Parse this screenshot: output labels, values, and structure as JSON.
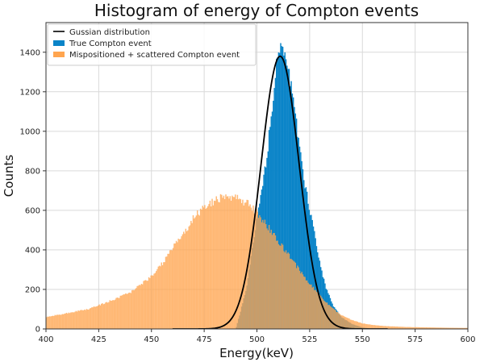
{
  "chart_data": {
    "type": "bar",
    "title": "Histogram of energy of Compton events",
    "xlabel": "Energy(keV)",
    "ylabel": "Counts",
    "xlim": [
      400,
      600
    ],
    "ylim": [
      0,
      1550
    ],
    "xticks": [
      400,
      425,
      450,
      475,
      500,
      525,
      550,
      575,
      600
    ],
    "yticks": [
      0,
      200,
      400,
      600,
      800,
      1000,
      1200,
      1400
    ],
    "grid": true,
    "legend_position": "top-left",
    "series": [
      {
        "name": "Mispositioned + scattered Compton event",
        "kind": "histogram",
        "color": "#FFA54F",
        "alpha": 0.78,
        "x": [
          400,
          410,
          420,
          430,
          440,
          445,
          450,
          455,
          460,
          465,
          470,
          475,
          480,
          485,
          490,
          495,
          500,
          505,
          510,
          515,
          520,
          525,
          530,
          535,
          540,
          545,
          550,
          555,
          560,
          570,
          580,
          590,
          600
        ],
        "values": [
          60,
          80,
          100,
          140,
          185,
          225,
          265,
          330,
          410,
          480,
          560,
          620,
          650,
          675,
          660,
          640,
          590,
          520,
          445,
          375,
          300,
          230,
          165,
          110,
          70,
          45,
          28,
          20,
          15,
          10,
          8,
          6,
          5
        ]
      },
      {
        "name": "True Compton event",
        "kind": "histogram",
        "color": "#0A84C8",
        "alpha": 1.0,
        "x": [
          490,
          495,
          498,
          500,
          502,
          505,
          508,
          510,
          512,
          515,
          518,
          520,
          522,
          525,
          528,
          530,
          533,
          536,
          540,
          545,
          550,
          555
        ],
        "values": [
          0,
          200,
          420,
          560,
          680,
          900,
          1200,
          1400,
          1430,
          1300,
          1100,
          950,
          780,
          600,
          440,
          320,
          200,
          120,
          60,
          25,
          8,
          0
        ]
      },
      {
        "name": "Gussian distribution",
        "kind": "line",
        "color": "#000000",
        "mean": 511,
        "sigma": 9,
        "peak": 1380
      }
    ]
  }
}
